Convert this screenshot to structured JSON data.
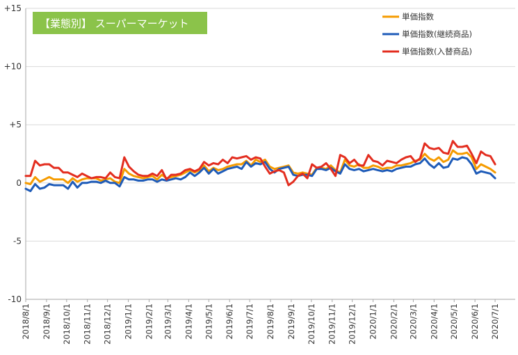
{
  "chart_data": {
    "type": "line",
    "title": "【業態別】 スーパーマーケット",
    "title_box_color": "#8BC34A",
    "ylim": [
      -10,
      15
    ],
    "yticks": [
      {
        "value": 15,
        "label": "+15"
      },
      {
        "value": 10,
        "label": "+10"
      },
      {
        "value": 5,
        "label": "+5"
      },
      {
        "value": 0,
        "label": "0"
      },
      {
        "value": -5,
        "label": "-5"
      },
      {
        "value": -10,
        "label": "-10"
      }
    ],
    "x_start": "2018-08-01",
    "x_step_days": 7,
    "x_end": "2020-07-31",
    "x_tick_labels": [
      "2018/8/1",
      "2018/9/1",
      "2018/10/1",
      "2018/11/1",
      "2018/12/1",
      "2019/1/1",
      "2019/2/1",
      "2019/3/1",
      "2019/4/1",
      "2019/5/1",
      "2019/6/1",
      "2019/7/1",
      "2019/8/1",
      "2019/9/1",
      "2019/10/1",
      "2019/11/1",
      "2019/12/1",
      "2020/1/1",
      "2020/2/1",
      "2020/3/1",
      "2020/4/1",
      "2020/5/1",
      "2020/6/1",
      "2020/7/1"
    ],
    "grid": "horizontal",
    "legend_position": "top-right",
    "series": [
      {
        "name": "単価指数",
        "color": "#F59B00",
        "values": [
          0.0,
          -0.1,
          0.5,
          0.1,
          0.3,
          0.5,
          0.3,
          0.3,
          0.3,
          0.0,
          0.4,
          0.1,
          0.3,
          0.4,
          0.4,
          0.4,
          0.2,
          0.3,
          0.4,
          0.1,
          0.0,
          1.2,
          0.8,
          0.6,
          0.5,
          0.4,
          0.5,
          0.6,
          0.3,
          0.7,
          0.4,
          0.5,
          0.6,
          0.7,
          0.9,
          1.1,
          0.9,
          1.1,
          1.5,
          1.0,
          1.3,
          1.1,
          1.2,
          1.4,
          1.5,
          1.6,
          1.6,
          1.9,
          1.5,
          2.0,
          1.8,
          2.0,
          1.4,
          1.2,
          1.3,
          1.4,
          1.5,
          0.9,
          0.8,
          0.9,
          0.8,
          0.7,
          1.3,
          1.3,
          1.2,
          1.5,
          1.1,
          0.9,
          2.0,
          1.5,
          1.4,
          1.6,
          1.3,
          1.3,
          1.5,
          1.4,
          1.2,
          1.3,
          1.3,
          1.5,
          1.5,
          1.6,
          1.7,
          1.9,
          2.0,
          2.5,
          2.1,
          1.9,
          2.2,
          1.8,
          2.0,
          2.8,
          2.5,
          2.5,
          2.6,
          2.2,
          1.2,
          1.6,
          1.4,
          1.2,
          0.9
        ]
      },
      {
        "name": "単価指数(継続商品)",
        "color": "#1E5BB8",
        "values": [
          -0.5,
          -0.7,
          -0.1,
          -0.5,
          -0.4,
          -0.1,
          -0.2,
          -0.2,
          -0.2,
          -0.5,
          0.1,
          -0.4,
          0.0,
          0.0,
          0.1,
          0.1,
          0.0,
          0.2,
          0.0,
          0.0,
          -0.3,
          0.5,
          0.3,
          0.3,
          0.2,
          0.2,
          0.3,
          0.3,
          0.1,
          0.3,
          0.2,
          0.3,
          0.4,
          0.3,
          0.5,
          0.9,
          0.6,
          0.9,
          1.3,
          0.8,
          1.2,
          0.8,
          1.0,
          1.2,
          1.3,
          1.4,
          1.2,
          1.8,
          1.4,
          1.7,
          1.6,
          1.8,
          1.2,
          0.9,
          1.2,
          1.3,
          1.4,
          0.7,
          0.6,
          0.7,
          0.7,
          0.6,
          1.2,
          1.2,
          1.1,
          1.3,
          1.0,
          0.8,
          1.6,
          1.2,
          1.1,
          1.2,
          1.0,
          1.1,
          1.2,
          1.1,
          1.0,
          1.1,
          1.0,
          1.2,
          1.3,
          1.4,
          1.4,
          1.6,
          1.7,
          2.1,
          1.6,
          1.3,
          1.7,
          1.3,
          1.4,
          2.1,
          2.0,
          2.2,
          2.1,
          1.6,
          0.8,
          1.0,
          0.9,
          0.8,
          0.4
        ]
      },
      {
        "name": "単価指数(入替商品)",
        "color": "#E32D1F",
        "values": [
          0.6,
          0.6,
          1.9,
          1.5,
          1.6,
          1.6,
          1.3,
          1.3,
          0.9,
          0.9,
          0.7,
          0.5,
          0.8,
          0.6,
          0.4,
          0.5,
          0.5,
          0.4,
          0.9,
          0.5,
          0.4,
          2.2,
          1.4,
          1.0,
          0.7,
          0.6,
          0.6,
          0.8,
          0.6,
          1.1,
          0.3,
          0.7,
          0.7,
          0.8,
          1.1,
          1.2,
          1.0,
          1.2,
          1.8,
          1.5,
          1.7,
          1.6,
          2.0,
          1.7,
          2.2,
          2.1,
          2.2,
          2.3,
          2.0,
          2.2,
          2.1,
          1.4,
          0.8,
          1.0,
          1.1,
          0.9,
          -0.2,
          0.1,
          0.6,
          0.8,
          0.4,
          1.6,
          1.3,
          1.4,
          1.7,
          1.2,
          0.6,
          2.4,
          2.2,
          1.7,
          2.0,
          1.5,
          1.5,
          2.4,
          1.9,
          1.8,
          1.5,
          1.9,
          1.8,
          1.7,
          2.0,
          2.2,
          2.3,
          1.8,
          2.1,
          3.4,
          3.0,
          2.9,
          3.0,
          2.6,
          2.5,
          3.6,
          3.1,
          3.1,
          3.2,
          2.5,
          1.7,
          2.7,
          2.4,
          2.3,
          1.6
        ]
      }
    ]
  }
}
